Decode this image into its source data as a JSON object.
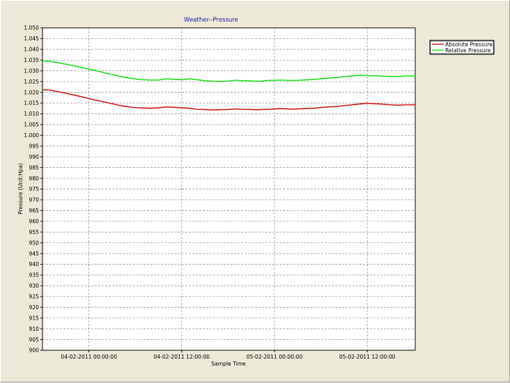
{
  "chart_data": {
    "type": "line",
    "title": "Weather--Pressure",
    "xlabel": "Sample Time",
    "ylabel": "Pressure (Unit:Hpa)",
    "x_ticks": [
      "04-02-2011 00:00:00",
      "04-02-2011 12:00:00",
      "05-02-2011 00:00:00",
      "05-02-2011 12:00:00"
    ],
    "x_tick_hours": [
      0,
      12,
      24,
      36
    ],
    "x_unit": "hours since 04-02-2011 00:00:00",
    "xlim": [
      -6.0,
      42.2
    ],
    "ylim": [
      900,
      1050
    ],
    "y_ticks": [
      "1.050",
      "1.045",
      "1.040",
      "1.035",
      "1.030",
      "1.025",
      "1.020",
      "1.015",
      "1.010",
      "1.005",
      "1.000",
      "995",
      "990",
      "985",
      "980",
      "975",
      "970",
      "965",
      "960",
      "955",
      "950",
      "945",
      "940",
      "935",
      "930",
      "925",
      "920",
      "915",
      "910",
      "905",
      "900"
    ],
    "grid": true,
    "legend_position": "top-right",
    "series": [
      {
        "name": "Absolute Pressure",
        "color": "#cc1a1a",
        "x": [
          -6.0,
          -5.0,
          -4.0,
          -3.0,
          -2.0,
          -1.0,
          0.0,
          1.0,
          2.0,
          3.0,
          4.0,
          5.0,
          6.0,
          7.0,
          8.0,
          9.0,
          10.0,
          11.0,
          12.0,
          13.0,
          14.0,
          15.0,
          16.0,
          17.0,
          18.0,
          19.0,
          20.0,
          21.0,
          22.0,
          23.0,
          24.0,
          25.0,
          26.0,
          27.0,
          28.0,
          29.0,
          30.0,
          31.0,
          32.0,
          33.0,
          34.0,
          35.0,
          36.0,
          37.0,
          38.0,
          39.0,
          40.0,
          41.0,
          42.2
        ],
        "y": [
          1021.2,
          1021.0,
          1020.3,
          1019.6,
          1018.8,
          1018.0,
          1017.1,
          1016.3,
          1015.5,
          1014.7,
          1013.9,
          1013.3,
          1012.9,
          1012.7,
          1012.6,
          1012.8,
          1013.2,
          1013.0,
          1012.8,
          1012.6,
          1012.1,
          1012.0,
          1011.8,
          1011.9,
          1012.0,
          1012.3,
          1012.1,
          1012.0,
          1011.9,
          1012.1,
          1012.3,
          1012.5,
          1012.2,
          1012.3,
          1012.5,
          1012.6,
          1012.9,
          1013.2,
          1013.4,
          1013.8,
          1014.2,
          1014.6,
          1014.9,
          1014.7,
          1014.5,
          1014.2,
          1014.0,
          1014.2,
          1014.2
        ]
      },
      {
        "name": "Relative Pressure",
        "color": "#22dd22",
        "x": [
          -6.0,
          -5.0,
          -4.0,
          -3.0,
          -2.0,
          -1.0,
          0.0,
          1.0,
          2.0,
          3.0,
          4.0,
          5.0,
          6.0,
          7.0,
          8.0,
          9.0,
          10.0,
          11.0,
          12.0,
          13.0,
          14.0,
          15.0,
          16.0,
          17.0,
          18.0,
          19.0,
          20.0,
          21.0,
          22.0,
          23.0,
          24.0,
          25.0,
          26.0,
          27.0,
          28.0,
          29.0,
          30.0,
          31.0,
          32.0,
          33.0,
          34.0,
          35.0,
          36.0,
          37.0,
          38.0,
          39.0,
          40.0,
          41.0,
          42.2
        ],
        "y": [
          1034.6,
          1034.4,
          1033.8,
          1033.1,
          1032.4,
          1031.6,
          1030.8,
          1030.0,
          1029.1,
          1028.3,
          1027.4,
          1026.8,
          1026.2,
          1025.9,
          1025.7,
          1025.7,
          1026.3,
          1026.1,
          1025.9,
          1026.3,
          1025.9,
          1025.4,
          1025.2,
          1025.1,
          1025.2,
          1025.6,
          1025.4,
          1025.3,
          1025.1,
          1025.5,
          1025.6,
          1025.7,
          1025.5,
          1025.6,
          1025.8,
          1026.0,
          1026.3,
          1026.6,
          1026.9,
          1027.3,
          1027.6,
          1027.9,
          1027.8,
          1027.7,
          1027.5,
          1027.4,
          1027.4,
          1027.6,
          1027.6
        ]
      }
    ]
  }
}
